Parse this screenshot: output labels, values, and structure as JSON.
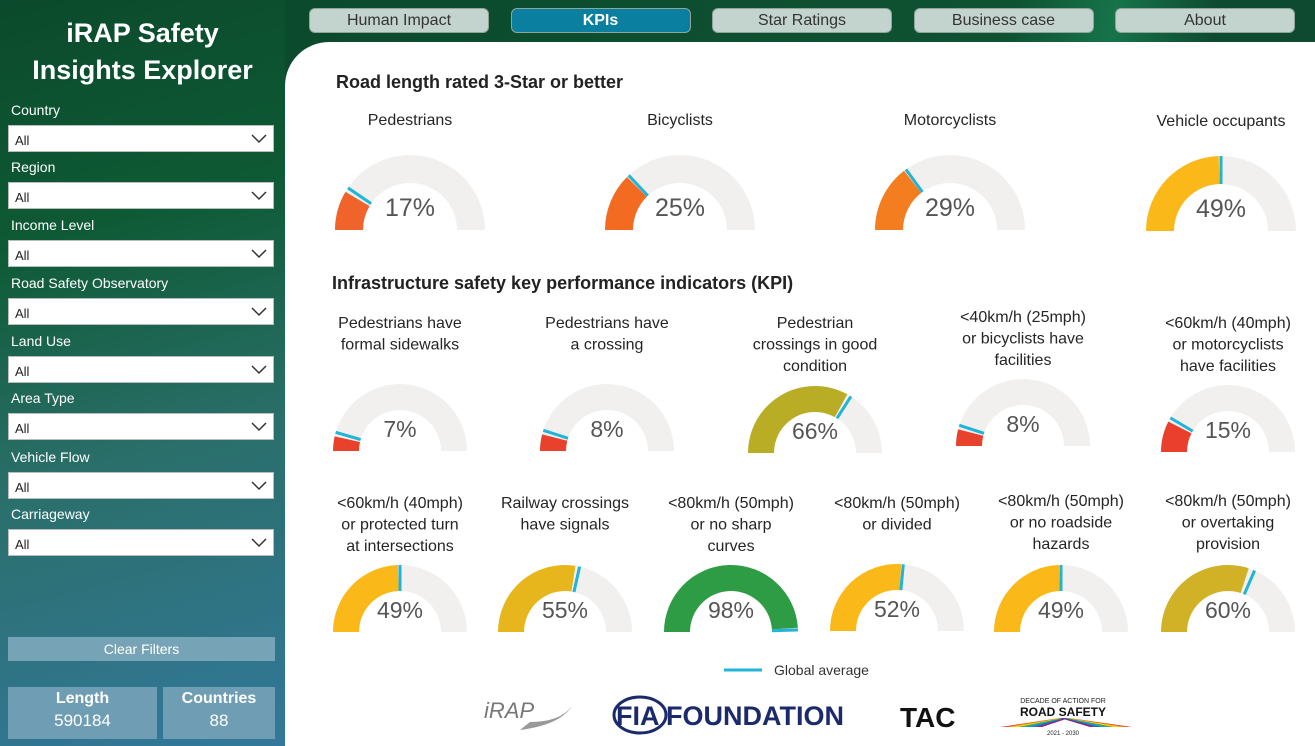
{
  "sidebar": {
    "title_lines": [
      "iRAP Safety",
      "Insights Explorer"
    ],
    "filters": [
      {
        "label": "Country",
        "value": "All"
      },
      {
        "label": "Region",
        "value": "All"
      },
      {
        "label": "Income Level",
        "value": "All"
      },
      {
        "label": "Road Safety Observatory",
        "value": "All"
      },
      {
        "label": "Land Use",
        "value": "All"
      },
      {
        "label": "Area Type",
        "value": "All"
      },
      {
        "label": "Vehicle Flow",
        "value": "All"
      },
      {
        "label": "Carriageway",
        "value": "All"
      }
    ],
    "clear_button": "Clear Filters",
    "cards": [
      {
        "label": "Length",
        "value": 590184
      },
      {
        "label": "Countries",
        "value": 88
      }
    ]
  },
  "nav": {
    "tabs": [
      "Human Impact",
      "KPIs",
      "Star Ratings",
      "Business case",
      "About"
    ],
    "active": 1
  },
  "gauge_range": [
    0,
    100
  ],
  "sections": [
    {
      "title": "Road length rated 3-Star or better",
      "gauges": [
        {
          "label_lines": [
            "Pedestrians"
          ],
          "value": 17,
          "value_label": "17%",
          "color": "#f0632a",
          "global_average": 19
        },
        {
          "label_lines": [
            "Bicyclists"
          ],
          "value": 25,
          "value_label": "25%",
          "color": "#f26b21",
          "global_average": 26
        },
        {
          "label_lines": [
            "Motorcyclists"
          ],
          "value": 29,
          "value_label": "29%",
          "color": "#f47d20",
          "global_average": 30
        },
        {
          "label_lines": [
            "Vehicle occupants"
          ],
          "value": 49,
          "value_label": "49%",
          "color": "#fbb919",
          "global_average": 50
        }
      ]
    },
    {
      "title": "Infrastructure safety key performance indicators (KPI)",
      "gauges": [
        {
          "label_lines": [
            "Pedestrians have",
            "formal sidewalks"
          ],
          "value": 7,
          "value_label": "7%",
          "color": "#e8412c",
          "global_average": 9
        },
        {
          "label_lines": [
            "Pedestrians have",
            "a crossing"
          ],
          "value": 8,
          "value_label": "8%",
          "color": "#e8412c",
          "global_average": 10
        },
        {
          "label_lines": [
            "Pedestrian",
            "crossings in good",
            "condition"
          ],
          "value": 66,
          "value_label": "66%",
          "color": "#b8ad24",
          "global_average": 68
        },
        {
          "label_lines": [
            "<40km/h (25mph)",
            "or bicyclists have",
            "facilities"
          ],
          "value": 8,
          "value_label": "8%",
          "color": "#e8412c",
          "global_average": 10
        },
        {
          "label_lines": [
            "<60km/h (40mph)",
            "or motorcyclists",
            "have facilities"
          ],
          "value": 15,
          "value_label": "15%",
          "color": "#ea3f2d",
          "global_average": 17
        },
        {
          "label_lines": [
            "<60km/h (40mph)",
            "or protected turn",
            "at intersections"
          ],
          "value": 49,
          "value_label": "49%",
          "color": "#fbb919",
          "global_average": 50
        },
        {
          "label_lines": [
            "Railway crossings",
            "have signals"
          ],
          "value": 55,
          "value_label": "55%",
          "color": "#e7b61c",
          "global_average": 57
        },
        {
          "label_lines": [
            "<80km/h (50mph)",
            "or no sharp",
            "curves"
          ],
          "value": 98,
          "value_label": "98%",
          "color": "#2e9b45",
          "global_average": 99
        },
        {
          "label_lines": [
            "<80km/h (50mph)",
            "or divided"
          ],
          "value": 52,
          "value_label": "52%",
          "color": "#fbb919",
          "global_average": 53
        },
        {
          "label_lines": [
            "<80km/h (50mph)",
            "or no roadside",
            "hazards"
          ],
          "value": 49,
          "value_label": "49%",
          "color": "#fbb919",
          "global_average": 50
        },
        {
          "label_lines": [
            "<80km/h (50mph)",
            "or overtaking",
            "provision"
          ],
          "value": 60,
          "value_label": "60%",
          "color": "#d1b126",
          "global_average": 63
        }
      ]
    }
  ],
  "legend": {
    "label": "Global average",
    "color": "#1fb4d8"
  },
  "logos": [
    "iRAP",
    "FIA FOUNDATION",
    "TAC",
    "DECADE OF ACTION FOR",
    "ROAD SAFETY",
    "2021 - 2030"
  ]
}
